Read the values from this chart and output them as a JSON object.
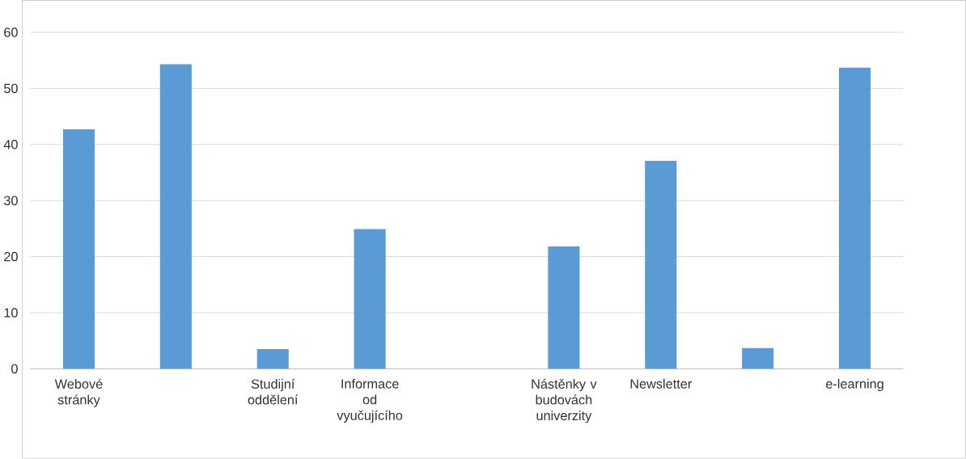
{
  "chart_data": {
    "type": "bar",
    "categories": [
      "Webové stránky",
      null,
      "Studijní oddělení",
      "Informace od vyučujícího",
      null,
      "Nástěnky v budovách univerzity",
      "Newsletter",
      null,
      "e-learning"
    ],
    "values": [
      42.7,
      54.3,
      3.5,
      24.9,
      0,
      21.8,
      37.1,
      3.7,
      53.7
    ],
    "color": "#5b9bd5",
    "ylim": [
      0,
      60
    ],
    "yticks": [
      0,
      10,
      20,
      30,
      40,
      50,
      60
    ],
    "grid": "y"
  }
}
